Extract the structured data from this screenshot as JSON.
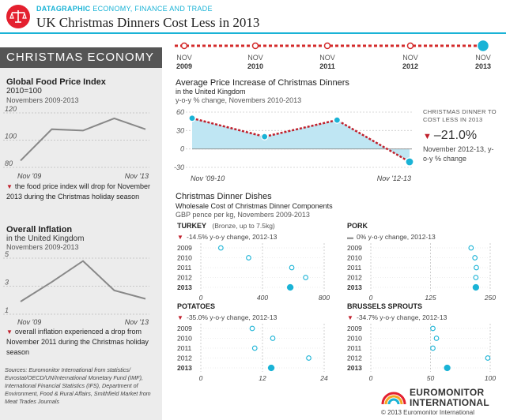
{
  "header": {
    "kicker_brand": "DATAGRAPHIC",
    "kicker_topic": "ECONOMY, FINANCE AND TRADE",
    "title": "UK Christmas Dinners Cost Less in 2013",
    "accent": "#1ab3d6",
    "red": "#c0202c"
  },
  "timeline": [
    {
      "month": "NOV",
      "year": "2009"
    },
    {
      "month": "NOV",
      "year": "2010"
    },
    {
      "month": "NOV",
      "year": "2011"
    },
    {
      "month": "NOV",
      "year": "2012"
    },
    {
      "month": "NOV",
      "year": "2013"
    }
  ],
  "left": {
    "banner": "CHRISTMAS ECONOMY",
    "food_index": {
      "title": "Global Food Price Index",
      "subtitle": "2010=100",
      "period": "Novembers 2009-2013",
      "note": "the food price index will drop for November 2013 during the Christmas holiday season"
    },
    "inflation": {
      "title": "Overall Inflation",
      "subtitle": "in the United Kingdom",
      "period": "Novembers 2009-2013",
      "note": "overall inflation experienced a drop from November 2011 during the Christmas holiday season"
    },
    "sources": "Sources: Euromonitor International from statistics/ Eurostat/OECD/UN/International Monetary Fund (IMF), International Financial Statistics (IFS), Department of Environment, Food & Rural Affairs, Smithfield Market from Meat Trades Journals"
  },
  "avg": {
    "title": "Average Price Increase of Christmas Dinners",
    "subtitle": "in the United Kingdom",
    "period": "y-o-y % change, Novembers 2010-2013",
    "callout_title": "CHRISTMAS DINNER TO COST LESS IN 2013",
    "callout_value": "–21.0%",
    "callout_note": "November 2012-13, y-o-y % change"
  },
  "dishes": {
    "title": "Christmas Dinner Dishes",
    "subtitle": "Wholesale Cost of Christmas Dinner Components",
    "period": "GBP pence per kg, Novembers 2009-2013"
  },
  "chart_data": [
    {
      "id": "food_index",
      "type": "line",
      "title": "Global Food Price Index",
      "x": [
        "Nov '09",
        "Nov '10",
        "Nov '11",
        "Nov '12",
        "Nov '13"
      ],
      "x_tick_labels": [
        "Nov '09",
        "Nov '13"
      ],
      "values": [
        85,
        108,
        107,
        116,
        108
      ],
      "y_ticks": [
        "120",
        "100",
        "80"
      ],
      "ylim": [
        80,
        120
      ]
    },
    {
      "id": "inflation",
      "type": "line",
      "title": "Overall Inflation",
      "x": [
        "Nov '09",
        "Nov '10",
        "Nov '11",
        "Nov '12",
        "Nov '13"
      ],
      "x_tick_labels": [
        "Nov '09",
        "Nov '13"
      ],
      "values": [
        1.9,
        3.3,
        4.8,
        2.7,
        2.1
      ],
      "y_ticks": [
        "5",
        "3",
        "1"
      ],
      "ylim": [
        1,
        5
      ]
    },
    {
      "id": "avg_increase",
      "type": "area",
      "title": "Average Price Increase of Christmas Dinners",
      "x": [
        "Nov '09-10",
        "Nov '10-11",
        "Nov '11-12",
        "Nov '12-13"
      ],
      "x_tick_labels": [
        "Nov '09-10",
        "Nov '12-13"
      ],
      "values": [
        50,
        20,
        47,
        -21
      ],
      "y_ticks": [
        "60",
        "30",
        "0",
        "-30"
      ],
      "ylim": [
        -30,
        60
      ]
    },
    {
      "id": "turkey",
      "type": "scatter",
      "name": "TURKEY",
      "qualifier": "(Bronze, up to 7.5kg)",
      "change": "-14.5% y-o-y change, 2012-13",
      "direction": "down",
      "categories": [
        "2009",
        "2010",
        "2011",
        "2012",
        "2013"
      ],
      "values": [
        130,
        310,
        590,
        680,
        580
      ],
      "x_ticks": [
        "0",
        "400",
        "800"
      ],
      "xlim": [
        0,
        800
      ]
    },
    {
      "id": "pork",
      "type": "scatter",
      "name": "PORK",
      "qualifier": "",
      "change": "0% y-o-y change, 2012-13",
      "direction": "flat",
      "categories": [
        "2009",
        "2010",
        "2011",
        "2012",
        "2013"
      ],
      "values": [
        210,
        218,
        221,
        220,
        220
      ],
      "x_ticks": [
        "0",
        "125",
        "250"
      ],
      "xlim": [
        0,
        250
      ]
    },
    {
      "id": "potatoes",
      "type": "scatter",
      "name": "POTATOES",
      "qualifier": "",
      "change": "-35.0% y-o-y change, 2012-13",
      "direction": "down",
      "categories": [
        "2009",
        "2010",
        "2011",
        "2012",
        "2013"
      ],
      "values": [
        10,
        14,
        10.5,
        21,
        13.7
      ],
      "x_ticks": [
        "0",
        "12",
        "24"
      ],
      "xlim": [
        0,
        24
      ]
    },
    {
      "id": "sprouts",
      "type": "scatter",
      "name": "BRUSSELS SPROUTS",
      "qualifier": "",
      "change": "-34.7% y-o-y change, 2012-13",
      "direction": "down",
      "categories": [
        "2009",
        "2010",
        "2011",
        "2012",
        "2013"
      ],
      "values": [
        52,
        55,
        52,
        98,
        64
      ],
      "x_ticks": [
        "0",
        "50",
        "100"
      ],
      "xlim": [
        0,
        100
      ]
    }
  ]
}
